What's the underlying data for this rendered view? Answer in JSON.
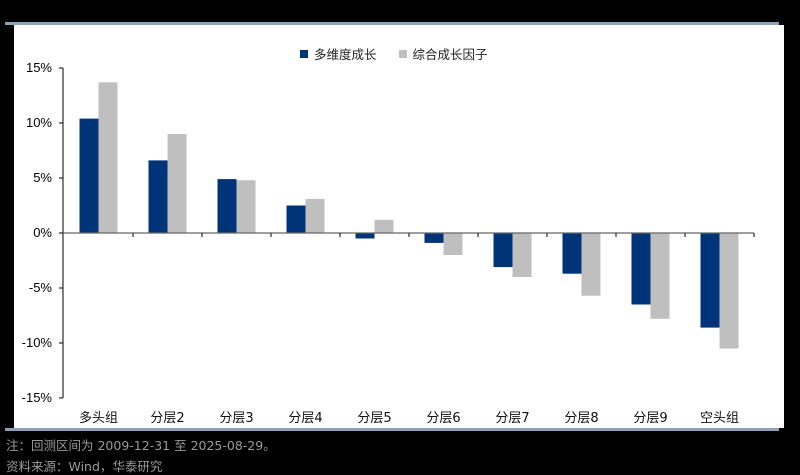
{
  "legend": {
    "series1": "多维度成长",
    "series2": "综合成长因子"
  },
  "colors": {
    "series1": "#003478",
    "series2": "#bfbfbf",
    "rule": "#8ea0b8"
  },
  "yticks": [
    "15%",
    "10%",
    "5%",
    "0%",
    "-5%",
    "-10%",
    "-15%"
  ],
  "categories": [
    "多头组",
    "分层2",
    "分层3",
    "分层4",
    "分层5",
    "分层6",
    "分层7",
    "分层8",
    "分层9",
    "空头组"
  ],
  "notes": {
    "line1": "注：回测区间为 2009-12-31 至 2025-08-29。",
    "line2": "资料来源：Wind，华泰研究"
  },
  "chart_data": {
    "type": "bar",
    "title": "",
    "categories": [
      "多头组",
      "分层2",
      "分层3",
      "分层4",
      "分层5",
      "分层6",
      "分层7",
      "分层8",
      "分层9",
      "空头组"
    ],
    "series": [
      {
        "name": "多维度成长",
        "values": [
          10.4,
          6.6,
          4.9,
          2.5,
          -0.5,
          -0.9,
          -3.1,
          -3.7,
          -6.5,
          -8.6
        ]
      },
      {
        "name": "综合成长因子",
        "values": [
          13.7,
          9.0,
          4.8,
          3.1,
          1.2,
          -2.0,
          -4.0,
          -5.7,
          -7.8,
          -10.5
        ]
      }
    ],
    "xlabel": "",
    "ylabel": "",
    "unit": "%",
    "ylim": [
      -15,
      15
    ],
    "yticks": [
      15,
      10,
      5,
      0,
      -5,
      -10,
      -15
    ],
    "grid": false,
    "legend_position": "top-center"
  }
}
